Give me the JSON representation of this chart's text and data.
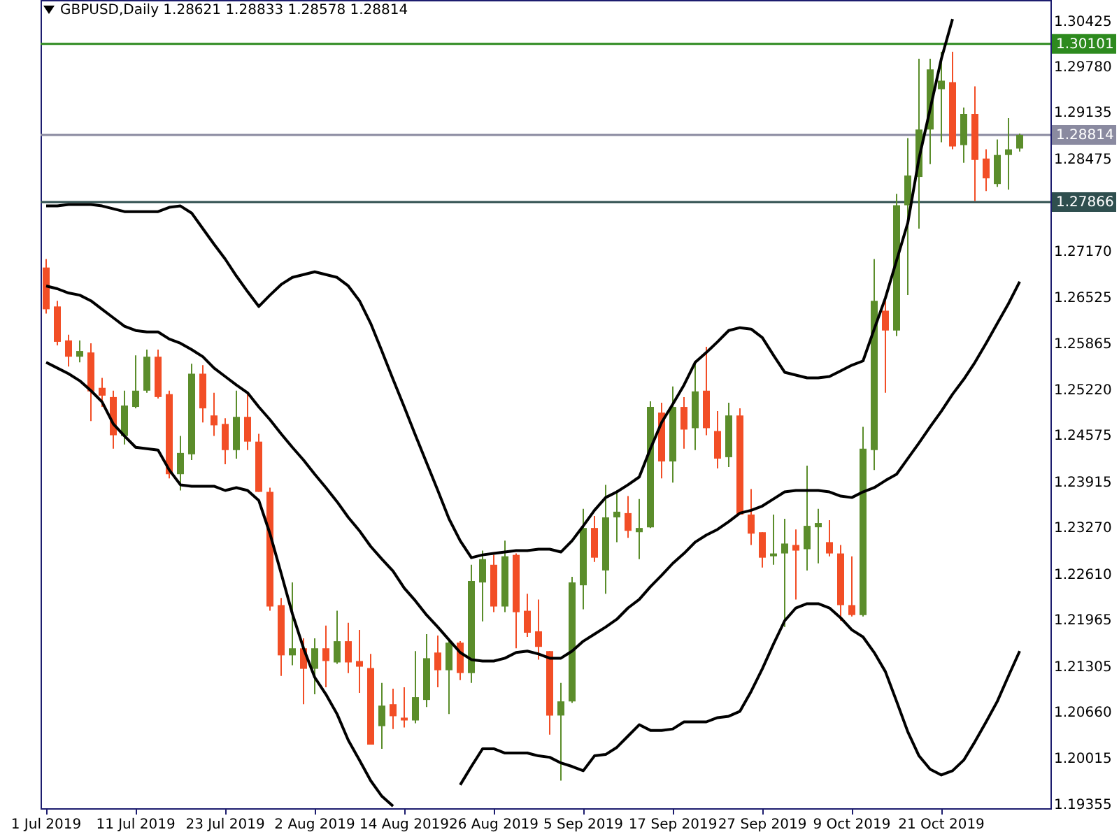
{
  "chart_data": {
    "type": "candlestick",
    "title": "GBPUSD,Daily 1.28621 1.28833 1.28578 1.28814",
    "categories": [
      "1 Jul 2019",
      null,
      null,
      null,
      null,
      null,
      null,
      null,
      "11 Jul 2019",
      null,
      null,
      null,
      null,
      null,
      null,
      null,
      "23 Jul 2019",
      null,
      null,
      null,
      null,
      null,
      null,
      null,
      "2 Aug 2019",
      null,
      null,
      null,
      null,
      null,
      null,
      null,
      "14 Aug 2019",
      null,
      null,
      null,
      null,
      null,
      null,
      null,
      "26 Aug 2019",
      null,
      null,
      null,
      null,
      null,
      null,
      null,
      "5 Sep 2019",
      null,
      null,
      null,
      null,
      null,
      null,
      null,
      "17 Sep 2019",
      null,
      null,
      null,
      null,
      null,
      null,
      null,
      "27 Sep 2019",
      null,
      null,
      null,
      null,
      null,
      null,
      null,
      "9 Oct 2019",
      null,
      null,
      null,
      null,
      null,
      null,
      null,
      "21 Oct 2019",
      null,
      null,
      null,
      null,
      null,
      null,
      null
    ],
    "ohlc": [
      [
        1.2694,
        1.2706,
        1.2629,
        1.2635
      ],
      [
        1.2639,
        1.2647,
        1.2584,
        1.2589
      ],
      [
        1.2591,
        1.2599,
        1.2554,
        1.2568
      ],
      [
        1.2568,
        1.2591,
        1.256,
        1.2576
      ],
      [
        1.2574,
        1.2587,
        1.2477,
        1.2519
      ],
      [
        1.2524,
        1.2538,
        1.2497,
        1.2513
      ],
      [
        1.2511,
        1.252,
        1.2438,
        1.2457
      ],
      [
        1.2456,
        1.252,
        1.2444,
        1.2499
      ],
      [
        1.2497,
        1.257,
        1.2495,
        1.252
      ],
      [
        1.252,
        1.2578,
        1.2517,
        1.2568
      ],
      [
        1.2568,
        1.2578,
        1.2509,
        1.2511
      ],
      [
        1.2515,
        1.252,
        1.2396,
        1.2402
      ],
      [
        1.2402,
        1.2456,
        1.2379,
        1.2432
      ],
      [
        1.243,
        1.2558,
        1.2422,
        1.2544
      ],
      [
        1.2544,
        1.2556,
        1.2475,
        1.2495
      ],
      [
        1.2485,
        1.2517,
        1.2456,
        1.2471
      ],
      [
        1.2473,
        1.2481,
        1.2416,
        1.2436
      ],
      [
        1.2436,
        1.252,
        1.2424,
        1.2483
      ],
      [
        1.2483,
        1.2517,
        1.2436,
        1.2448
      ],
      [
        1.2448,
        1.2459,
        1.2377,
        1.2377
      ],
      [
        1.2377,
        1.2383,
        1.2209,
        1.2215
      ],
      [
        1.2217,
        1.2227,
        1.2117,
        1.2146
      ],
      [
        1.2146,
        1.2249,
        1.2132,
        1.2156
      ],
      [
        1.2156,
        1.217,
        1.2077,
        1.2127
      ],
      [
        1.2127,
        1.217,
        1.2091,
        1.2156
      ],
      [
        1.2156,
        1.2188,
        1.2101,
        1.2138
      ],
      [
        1.2136,
        1.2209,
        1.2134,
        1.2166
      ],
      [
        1.2166,
        1.2192,
        1.2121,
        1.2136
      ],
      [
        1.2138,
        1.2182,
        1.2093,
        1.213
      ],
      [
        1.2128,
        1.2148,
        1.202,
        1.202
      ],
      [
        1.2046,
        1.2107,
        1.2014,
        1.2075
      ],
      [
        1.2077,
        1.2099,
        1.2042,
        1.206
      ],
      [
        1.2058,
        1.2101,
        1.2044,
        1.2054
      ],
      [
        1.2054,
        1.2152,
        1.205,
        1.2087
      ],
      [
        1.2083,
        1.2176,
        1.2073,
        1.2142
      ],
      [
        1.215,
        1.2174,
        1.2101,
        1.2125
      ],
      [
        1.2125,
        1.2166,
        1.2063,
        1.2164
      ],
      [
        1.2164,
        1.2166,
        1.2111,
        1.2121
      ],
      [
        1.2121,
        1.2274,
        1.2107,
        1.2251
      ],
      [
        1.2249,
        1.2294,
        1.2194,
        1.2282
      ],
      [
        1.2274,
        1.2288,
        1.2207,
        1.2215
      ],
      [
        1.2215,
        1.2308,
        1.2207,
        1.2286
      ],
      [
        1.2288,
        1.229,
        1.2156,
        1.2207
      ],
      [
        1.2209,
        1.2233,
        1.2172,
        1.2178
      ],
      [
        1.218,
        1.2225,
        1.214,
        1.2158
      ],
      [
        1.2152,
        1.2152,
        1.2034,
        1.2061
      ],
      [
        1.2061,
        1.2107,
        1.1969,
        1.2081
      ],
      [
        1.2081,
        1.2257,
        1.2079,
        1.2249
      ],
      [
        1.2245,
        1.2353,
        1.2211,
        1.2326
      ],
      [
        1.2326,
        1.2343,
        1.2278,
        1.2284
      ],
      [
        1.2266,
        1.2387,
        1.2233,
        1.2341
      ],
      [
        1.2341,
        1.2379,
        1.2306,
        1.2349
      ],
      [
        1.2347,
        1.2371,
        1.2312,
        1.2322
      ],
      [
        1.232,
        1.2367,
        1.2282,
        1.2326
      ],
      [
        1.2327,
        1.2505,
        1.2326,
        1.2497
      ],
      [
        1.2489,
        1.2503,
        1.2396,
        1.242
      ],
      [
        1.242,
        1.2526,
        1.239,
        1.2497
      ],
      [
        1.2497,
        1.2511,
        1.2438,
        1.2465
      ],
      [
        1.2467,
        1.2558,
        1.2436,
        1.2519
      ],
      [
        1.252,
        1.2582,
        1.2457,
        1.2467
      ],
      [
        1.2463,
        1.2491,
        1.241,
        1.2424
      ],
      [
        1.2426,
        1.2503,
        1.2412,
        1.2485
      ],
      [
        1.2485,
        1.2495,
        1.2345,
        1.2345
      ],
      [
        1.2345,
        1.2381,
        1.2302,
        1.2318
      ],
      [
        1.232,
        1.232,
        1.227,
        1.2284
      ],
      [
        1.2286,
        1.2345,
        1.2274,
        1.229
      ],
      [
        1.229,
        1.2339,
        1.2186,
        1.2304
      ],
      [
        1.2302,
        1.2324,
        1.2225,
        1.2294
      ],
      [
        1.2296,
        1.2414,
        1.2266,
        1.2329
      ],
      [
        1.2327,
        1.2353,
        1.2276,
        1.2333
      ],
      [
        1.2306,
        1.2337,
        1.2286,
        1.229
      ],
      [
        1.229,
        1.2302,
        1.2195,
        1.2217
      ],
      [
        1.2217,
        1.2286,
        1.2201,
        1.2203
      ],
      [
        1.2203,
        1.2469,
        1.2201,
        1.2438
      ],
      [
        1.2436,
        1.2706,
        1.2408,
        1.2647
      ],
      [
        1.2633,
        1.2649,
        1.2517,
        1.2605
      ],
      [
        1.2605,
        1.2798,
        1.2597,
        1.2782
      ],
      [
        1.2782,
        1.2877,
        1.2655,
        1.2824
      ],
      [
        1.2822,
        1.2989,
        1.2749,
        1.2889
      ],
      [
        1.2889,
        1.2989,
        1.284,
        1.2974
      ],
      [
        1.2946,
        1.2999,
        1.2871,
        1.2958
      ],
      [
        1.2956,
        1.2999,
        1.2861,
        1.2865
      ],
      [
        1.2867,
        1.292,
        1.2842,
        1.2911
      ],
      [
        1.2911,
        1.295,
        1.2788,
        1.2846
      ],
      [
        1.2848,
        1.2861,
        1.2802,
        1.282
      ],
      [
        1.2812,
        1.2875,
        1.2808,
        1.2853
      ],
      [
        1.2853,
        1.2905,
        1.2804,
        1.2861
      ],
      [
        1.28621,
        1.28833,
        1.28578,
        1.28814
      ]
    ],
    "colors": [
      "#f24e26",
      "#f24e26",
      "#f24e26",
      "#5b8d2b",
      "#f24e26",
      "#f24e26",
      "#f24e26",
      "#5b8d2b",
      "#5b8d2b",
      "#5b8d2b",
      "#f24e26",
      "#f24e26",
      "#5b8d2b",
      "#5b8d2b",
      "#f24e26",
      "#f24e26",
      "#f24e26",
      "#5b8d2b",
      "#f24e26",
      "#f24e26",
      "#f24e26",
      "#f24e26",
      "#5b8d2b",
      "#f24e26",
      "#5b8d2b",
      "#f24e26",
      "#5b8d2b",
      "#f24e26",
      "#f24e26",
      "#f24e26",
      "#5b8d2b",
      "#f24e26",
      "#f24e26",
      "#5b8d2b",
      "#5b8d2b",
      "#f24e26",
      "#5b8d2b",
      "#f24e26",
      "#5b8d2b",
      "#5b8d2b",
      "#f24e26",
      "#5b8d2b",
      "#f24e26",
      "#f24e26",
      "#f24e26",
      "#f24e26",
      "#5b8d2b",
      "#5b8d2b",
      "#5b8d2b",
      "#f24e26",
      "#5b8d2b",
      "#5b8d2b",
      "#f24e26",
      "#5b8d2b",
      "#5b8d2b",
      "#f24e26",
      "#5b8d2b",
      "#f24e26",
      "#5b8d2b",
      "#f24e26",
      "#f24e26",
      "#5b8d2b",
      "#f24e26",
      "#f24e26",
      "#f24e26",
      "#5b8d2b",
      "#5b8d2b",
      "#f24e26",
      "#5b8d2b",
      "#5b8d2b",
      "#f24e26",
      "#f24e26",
      "#f24e26",
      "#5b8d2b",
      "#5b8d2b",
      "#f24e26",
      "#5b8d2b",
      "#5b8d2b",
      "#5b8d2b",
      "#5b8d2b",
      "#5b8d2b",
      "#f24e26",
      "#5b8d2b",
      "#f24e26",
      "#f24e26",
      "#5b8d2b",
      "#5b8d2b",
      "#5b8d2b"
    ],
    "series": [
      {
        "type": "line",
        "color": "#000000",
        "values": [
          1.2781,
          1.2781,
          1.2783,
          1.2783,
          1.2783,
          1.2781,
          1.2777,
          1.2773,
          1.2773,
          1.2773,
          1.2773,
          1.2779,
          1.2781,
          1.2771,
          1.2749,
          1.2727,
          1.2706,
          1.2682,
          1.266,
          1.2639,
          1.2655,
          1.267,
          1.268,
          1.2684,
          1.2688,
          1.2684,
          1.268,
          1.2668,
          1.2647,
          1.2615,
          1.2576,
          1.2536,
          1.2497,
          1.2457,
          1.2418,
          1.2379,
          1.2339,
          1.2308,
          1.2284,
          1.2288,
          1.229,
          1.2292,
          1.2294,
          1.2294,
          1.2296,
          1.2296,
          1.2292,
          1.2308,
          1.2329,
          1.2351,
          1.2369,
          1.2377,
          1.2387,
          1.2398,
          1.2438,
          1.2475,
          1.2501,
          1.2528,
          1.256,
          1.2574,
          1.2589,
          1.2605,
          1.2609,
          1.2607,
          1.2595,
          1.257,
          1.2546,
          1.2542,
          1.2538,
          1.2538,
          1.254,
          1.2548,
          1.2556,
          1.2562,
          1.2607,
          1.2651,
          1.2704,
          1.2757,
          1.2848,
          1.2918,
          1.2989,
          1.3045,
          null,
          null,
          null,
          null,
          null,
          null
        ]
      },
      {
        "type": "line",
        "color": "#000000",
        "values": [
          1.2668,
          1.2664,
          1.2658,
          1.2655,
          1.2647,
          1.2635,
          1.2623,
          1.2611,
          1.2605,
          1.2603,
          1.2603,
          1.2593,
          1.2587,
          1.2578,
          1.2568,
          1.2552,
          1.254,
          1.2528,
          1.2517,
          1.2497,
          1.2479,
          1.2459,
          1.244,
          1.2422,
          1.2402,
          1.2383,
          1.2363,
          1.2341,
          1.2322,
          1.23,
          1.2282,
          1.2265,
          1.2241,
          1.2223,
          1.2203,
          1.2186,
          1.2168,
          1.215,
          1.214,
          1.2138,
          1.2138,
          1.2142,
          1.215,
          1.2152,
          1.2148,
          1.2142,
          1.2142,
          1.2152,
          1.2166,
          1.2176,
          1.2186,
          1.2197,
          1.2213,
          1.2225,
          1.2243,
          1.2259,
          1.2276,
          1.229,
          1.2306,
          1.2316,
          1.2324,
          1.2335,
          1.2347,
          1.2351,
          1.2357,
          1.2367,
          1.2377,
          1.2379,
          1.2379,
          1.2379,
          1.2377,
          1.2371,
          1.2369,
          1.2377,
          1.2383,
          1.2393,
          1.2402,
          1.2424,
          1.2446,
          1.2469,
          1.2491,
          1.2515,
          1.2536,
          1.256,
          1.2587,
          1.2615,
          1.2643,
          1.2674
        ]
      },
      {
        "type": "line",
        "color": "#000000",
        "values": [
          1.256,
          1.2552,
          1.2544,
          1.2534,
          1.252,
          1.2504,
          1.2473,
          1.2456,
          1.244,
          1.2438,
          1.2436,
          1.2408,
          1.2387,
          1.2385,
          1.2385,
          1.2385,
          1.2379,
          1.2383,
          1.2379,
          1.2365,
          1.2318,
          1.2262,
          1.2205,
          1.2156,
          1.2115,
          1.2091,
          1.2063,
          1.2026,
          1.1998,
          1.1969,
          1.1947,
          1.1933,
          null,
          null,
          null,
          null,
          null,
          1.1963,
          1.1989,
          1.2014,
          1.2014,
          1.2008,
          1.2008,
          1.2008,
          1.2004,
          1.2002,
          1.1994,
          1.1989,
          1.1983,
          1.2004,
          1.2006,
          1.2016,
          1.2032,
          1.2048,
          1.204,
          1.204,
          1.2042,
          1.2052,
          1.2052,
          1.2052,
          1.2058,
          1.206,
          1.2067,
          1.2095,
          1.2127,
          1.2162,
          1.2195,
          1.2213,
          1.2219,
          1.2219,
          1.2213,
          1.2199,
          1.2182,
          1.2172,
          1.215,
          1.2123,
          1.2081,
          1.2038,
          1.2004,
          1.1985,
          1.1977,
          1.1983,
          1.1998,
          1.2024,
          1.2052,
          1.2081,
          1.2117,
          1.2152
        ]
      }
    ],
    "ylim": [
      1.193,
      1.3072
    ],
    "yticks": [
      1.30425,
      {
        "value": 1.2978,
        "label": "1.29780"
      },
      1.29135,
      1.28475,
      {
        "value": 1.2717,
        "label": "1.27170"
      },
      1.26525,
      1.25865,
      {
        "value": 1.2522,
        "label": "1.25220"
      },
      1.24575,
      1.23915,
      {
        "value": 1.2327,
        "label": "1.23270"
      },
      {
        "value": 1.2261,
        "label": "1.22610"
      },
      1.21965,
      1.21305,
      {
        "value": 1.2066,
        "label": "1.20660"
      },
      1.20015,
      1.19355
    ],
    "ref_lines": [
      {
        "axis": "y",
        "value": 1.30101,
        "label": "1.30101",
        "color": "#2d8a1e"
      },
      {
        "axis": "y",
        "value": 1.28814,
        "label": "1.28814",
        "color": "#8a8aa0"
      },
      {
        "axis": "y",
        "value": 1.27866,
        "label": "1.27866",
        "color": "#2f4f4f"
      }
    ]
  }
}
